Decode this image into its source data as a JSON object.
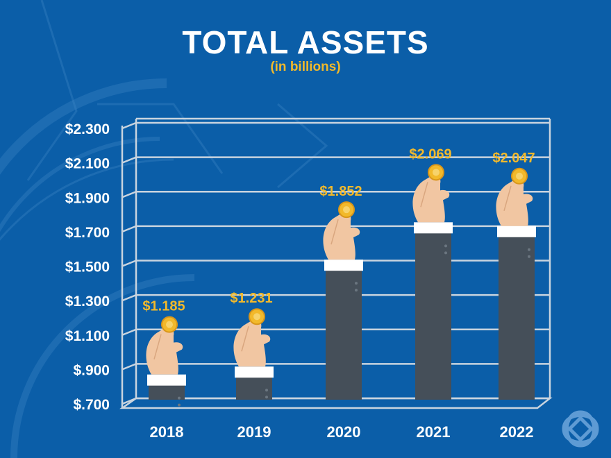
{
  "header": {
    "title": "TOTAL ASSETS",
    "subtitle": "(in billions)"
  },
  "colors": {
    "background": "#0b5ea8",
    "grid": "#c9d4df",
    "sleeve": "#454f59",
    "cuff": "#ffffff",
    "hand": "#f1c6a2",
    "coin": "#f2b92b",
    "value_label": "#f2b92b",
    "text": "#ffffff"
  },
  "icons": {
    "bar_top": "hand-holding-coin-icon",
    "corner_logo": "celtic-knot-logo-icon"
  },
  "chart_data": {
    "type": "bar",
    "title": "TOTAL ASSETS",
    "subtitle": "(in billions)",
    "xlabel": "",
    "ylabel": "",
    "categories": [
      "2018",
      "2019",
      "2020",
      "2021",
      "2022"
    ],
    "values": [
      1.185,
      1.231,
      1.852,
      2.069,
      2.047
    ],
    "value_labels": [
      "$1.185",
      "$1.231",
      "$1.852",
      "$2.069",
      "$2.047"
    ],
    "y_ticks": [
      0.7,
      0.9,
      1.1,
      1.3,
      1.5,
      1.7,
      1.9,
      2.1,
      2.3
    ],
    "y_tick_labels": [
      "$.700",
      "$.900",
      "$1.100",
      "$1.300",
      "$1.500",
      "$1.700",
      "$1.900",
      "$2.100",
      "$2.300"
    ],
    "ylim": [
      0.7,
      2.3
    ],
    "grid": true,
    "legend": "none"
  }
}
